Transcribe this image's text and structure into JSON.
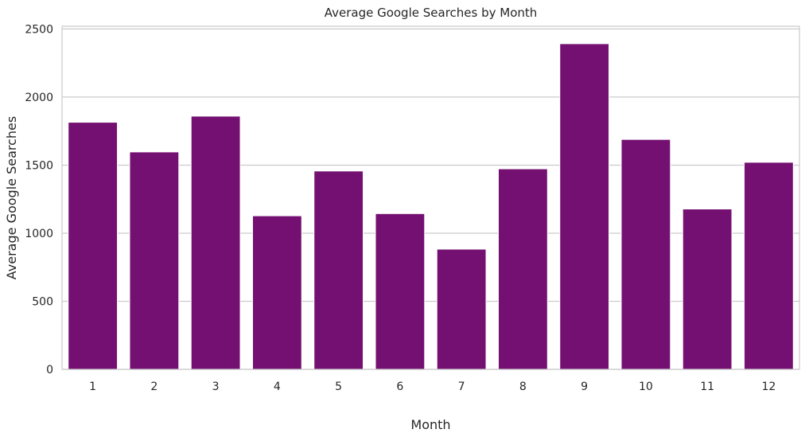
{
  "chart_data": {
    "type": "bar",
    "title": "Average Google Searches by Month",
    "xlabel": "Month",
    "ylabel": "Average Google Searches",
    "categories": [
      "1",
      "2",
      "3",
      "4",
      "5",
      "6",
      "7",
      "8",
      "9",
      "10",
      "11",
      "12"
    ],
    "values": [
      1815,
      1597,
      1860,
      1128,
      1457,
      1144,
      883,
      1473,
      2392,
      1689,
      1178,
      1521
    ],
    "ylim": [
      0,
      2520
    ],
    "yticks": [
      "0",
      "500",
      "1000",
      "1500",
      "2000",
      "2500"
    ],
    "grid": "horizontal",
    "bar_color": "#741071",
    "grid_color": "#cccccc",
    "frame_color": "#cccccc",
    "legend": "none"
  }
}
